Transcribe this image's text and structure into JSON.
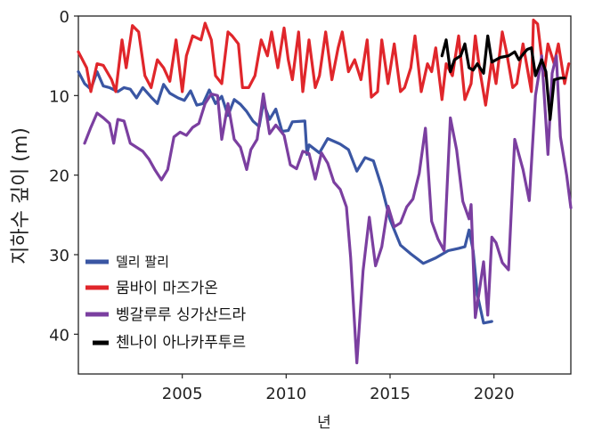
{
  "chart_data": {
    "type": "line",
    "title": "",
    "xlabel": "년",
    "ylabel": "지하수 깊이 (m)",
    "xlim": [
      2000,
      2023.7
    ],
    "ylim": [
      0,
      45
    ],
    "y_inverted": true,
    "x_ticks": [
      2005,
      2010,
      2015,
      2020
    ],
    "y_ticks": [
      0,
      10,
      20,
      30,
      40
    ],
    "legend_position": "bottom-left",
    "series": [
      {
        "name": "델리 팔리",
        "color": "#3a56a3",
        "points": [
          [
            2000.0,
            7.0
          ],
          [
            2000.3,
            8.5
          ],
          [
            2000.6,
            9.2
          ],
          [
            2000.9,
            7.0
          ],
          [
            2001.2,
            8.8
          ],
          [
            2001.5,
            9.0
          ],
          [
            2001.9,
            9.5
          ],
          [
            2002.2,
            9.0
          ],
          [
            2002.5,
            9.2
          ],
          [
            2002.8,
            10.3
          ],
          [
            2003.1,
            9.0
          ],
          [
            2003.5,
            10.2
          ],
          [
            2003.8,
            11.0
          ],
          [
            2004.1,
            8.6
          ],
          [
            2004.4,
            9.7
          ],
          [
            2004.8,
            10.3
          ],
          [
            2005.1,
            10.6
          ],
          [
            2005.4,
            9.4
          ],
          [
            2005.7,
            11.2
          ],
          [
            2006.0,
            11.0
          ],
          [
            2006.3,
            9.3
          ],
          [
            2006.6,
            11.0
          ],
          [
            2006.9,
            10.1
          ],
          [
            2007.2,
            12.5
          ],
          [
            2007.5,
            10.5
          ],
          [
            2007.8,
            11.1
          ],
          [
            2008.1,
            12.0
          ],
          [
            2008.4,
            13.2
          ],
          [
            2008.7,
            13.9
          ],
          [
            2008.9,
            10.9
          ],
          [
            2009.2,
            13.0
          ],
          [
            2009.5,
            11.7
          ],
          [
            2009.8,
            14.5
          ],
          [
            2010.1,
            14.4
          ],
          [
            2010.3,
            13.3
          ],
          [
            2010.9,
            13.2
          ],
          [
            2011.0,
            17.4
          ],
          [
            2011.1,
            16.2
          ],
          [
            2011.6,
            17.2
          ],
          [
            2012.0,
            15.4
          ],
          [
            2012.6,
            16.1
          ],
          [
            2013.0,
            16.8
          ],
          [
            2013.4,
            19.5
          ],
          [
            2013.8,
            17.8
          ],
          [
            2014.2,
            18.2
          ],
          [
            2014.6,
            21.5
          ],
          [
            2015.0,
            25.6
          ],
          [
            2015.5,
            28.8
          ],
          [
            2016.0,
            29.9
          ],
          [
            2016.6,
            31.1
          ],
          [
            2017.2,
            30.4
          ],
          [
            2017.8,
            29.5
          ],
          [
            2018.3,
            29.2
          ],
          [
            2018.6,
            29.0
          ],
          [
            2018.8,
            26.9
          ],
          [
            2019.0,
            29.5
          ],
          [
            2019.2,
            35.0
          ],
          [
            2019.5,
            38.6
          ],
          [
            2019.9,
            38.4
          ]
        ]
      },
      {
        "name": "뭄바이 마즈가온",
        "color": "#e0262b",
        "points": [
          [
            2000.0,
            4.5
          ],
          [
            2000.4,
            6.5
          ],
          [
            2000.6,
            9.5
          ],
          [
            2000.9,
            6.0
          ],
          [
            2001.2,
            6.2
          ],
          [
            2001.6,
            8.0
          ],
          [
            2001.8,
            9.5
          ],
          [
            2002.1,
            3.0
          ],
          [
            2002.3,
            6.5
          ],
          [
            2002.6,
            1.2
          ],
          [
            2002.9,
            2.0
          ],
          [
            2003.2,
            7.5
          ],
          [
            2003.5,
            9.0
          ],
          [
            2003.8,
            5.5
          ],
          [
            2004.1,
            6.5
          ],
          [
            2004.4,
            8.2
          ],
          [
            2004.7,
            3.0
          ],
          [
            2005.0,
            9.5
          ],
          [
            2005.2,
            5.0
          ],
          [
            2005.5,
            2.5
          ],
          [
            2005.9,
            3.0
          ],
          [
            2006.1,
            0.9
          ],
          [
            2006.4,
            3.0
          ],
          [
            2006.6,
            7.5
          ],
          [
            2006.9,
            8.5
          ],
          [
            2007.2,
            2.0
          ],
          [
            2007.4,
            2.5
          ],
          [
            2007.7,
            3.5
          ],
          [
            2007.9,
            9.0
          ],
          [
            2008.2,
            9.0
          ],
          [
            2008.5,
            7.5
          ],
          [
            2008.8,
            3.0
          ],
          [
            2009.1,
            5.0
          ],
          [
            2009.3,
            2.0
          ],
          [
            2009.6,
            6.5
          ],
          [
            2009.9,
            1.5
          ],
          [
            2010.1,
            5.5
          ],
          [
            2010.3,
            8.0
          ],
          [
            2010.6,
            2.0
          ],
          [
            2010.8,
            9.5
          ],
          [
            2011.1,
            3.0
          ],
          [
            2011.4,
            9.0
          ],
          [
            2011.6,
            7.5
          ],
          [
            2011.9,
            2.0
          ],
          [
            2012.2,
            8.0
          ],
          [
            2012.5,
            4.0
          ],
          [
            2012.7,
            2.0
          ],
          [
            2013.0,
            7.0
          ],
          [
            2013.3,
            5.5
          ],
          [
            2013.6,
            8.0
          ],
          [
            2013.9,
            3.0
          ],
          [
            2014.1,
            10.2
          ],
          [
            2014.4,
            9.5
          ],
          [
            2014.6,
            3.0
          ],
          [
            2014.9,
            8.5
          ],
          [
            2015.2,
            3.5
          ],
          [
            2015.5,
            9.5
          ],
          [
            2015.7,
            9.0
          ],
          [
            2016.0,
            6.5
          ],
          [
            2016.2,
            2.5
          ],
          [
            2016.5,
            9.5
          ],
          [
            2016.8,
            6.0
          ],
          [
            2017.0,
            7.0
          ],
          [
            2017.2,
            4.0
          ],
          [
            2017.5,
            10.5
          ],
          [
            2017.7,
            6.0
          ],
          [
            2018.0,
            7.5
          ],
          [
            2018.3,
            2.5
          ],
          [
            2018.6,
            10.5
          ],
          [
            2018.9,
            8.5
          ],
          [
            2019.1,
            2.5
          ],
          [
            2019.3,
            6.5
          ],
          [
            2019.6,
            11.2
          ],
          [
            2019.9,
            5.5
          ],
          [
            2020.1,
            8.5
          ],
          [
            2020.4,
            2.0
          ],
          [
            2020.6,
            4.5
          ],
          [
            2020.9,
            9.0
          ],
          [
            2021.1,
            8.5
          ],
          [
            2021.4,
            3.5
          ],
          [
            2021.8,
            9.5
          ],
          [
            2021.9,
            0.5
          ],
          [
            2022.1,
            1.0
          ],
          [
            2022.4,
            7.5
          ],
          [
            2022.6,
            3.5
          ],
          [
            2022.9,
            6.0
          ],
          [
            2023.1,
            3.5
          ],
          [
            2023.4,
            8.5
          ],
          [
            2023.6,
            6.0
          ]
        ]
      },
      {
        "name": "벵갈루루 싱가산드라",
        "color": "#7b3fa0",
        "points": [
          [
            2000.3,
            16.0
          ],
          [
            2000.6,
            14.0
          ],
          [
            2000.9,
            12.2
          ],
          [
            2001.2,
            12.8
          ],
          [
            2001.5,
            13.5
          ],
          [
            2001.7,
            16.0
          ],
          [
            2001.9,
            13.0
          ],
          [
            2002.2,
            13.2
          ],
          [
            2002.5,
            16.0
          ],
          [
            2002.8,
            16.5
          ],
          [
            2003.1,
            17.0
          ],
          [
            2003.4,
            18.0
          ],
          [
            2003.7,
            19.4
          ],
          [
            2004.0,
            20.6
          ],
          [
            2004.3,
            19.3
          ],
          [
            2004.6,
            15.2
          ],
          [
            2004.9,
            14.6
          ],
          [
            2005.2,
            15.0
          ],
          [
            2005.5,
            14.0
          ],
          [
            2005.8,
            13.5
          ],
          [
            2006.1,
            11.0
          ],
          [
            2006.4,
            9.8
          ],
          [
            2006.7,
            10.0
          ],
          [
            2006.9,
            15.5
          ],
          [
            2007.2,
            11.0
          ],
          [
            2007.5,
            15.5
          ],
          [
            2007.8,
            16.5
          ],
          [
            2008.1,
            19.3
          ],
          [
            2008.3,
            16.8
          ],
          [
            2008.6,
            15.5
          ],
          [
            2008.9,
            9.8
          ],
          [
            2009.2,
            14.8
          ],
          [
            2009.5,
            13.7
          ],
          [
            2009.9,
            15.0
          ],
          [
            2010.2,
            18.7
          ],
          [
            2010.5,
            19.2
          ],
          [
            2010.8,
            17.0
          ],
          [
            2011.1,
            17.3
          ],
          [
            2011.4,
            20.5
          ],
          [
            2011.7,
            17.2
          ],
          [
            2012.0,
            18.5
          ],
          [
            2012.3,
            20.9
          ],
          [
            2012.6,
            21.8
          ],
          [
            2012.9,
            24.0
          ],
          [
            2013.1,
            30.3
          ],
          [
            2013.4,
            43.6
          ],
          [
            2013.7,
            32.0
          ],
          [
            2014.0,
            25.3
          ],
          [
            2014.3,
            31.4
          ],
          [
            2014.6,
            29.0
          ],
          [
            2014.9,
            23.9
          ],
          [
            2015.2,
            26.5
          ],
          [
            2015.5,
            26.0
          ],
          [
            2015.8,
            24.0
          ],
          [
            2016.1,
            23.0
          ],
          [
            2016.4,
            19.8
          ],
          [
            2016.7,
            14.1
          ],
          [
            2017.0,
            25.8
          ],
          [
            2017.3,
            28.0
          ],
          [
            2017.6,
            29.5
          ],
          [
            2017.9,
            12.8
          ],
          [
            2018.2,
            16.8
          ],
          [
            2018.5,
            23.3
          ],
          [
            2018.8,
            25.5
          ],
          [
            2018.9,
            23.7
          ],
          [
            2019.1,
            37.9
          ],
          [
            2019.3,
            34.5
          ],
          [
            2019.5,
            30.9
          ],
          [
            2019.7,
            37.6
          ],
          [
            2019.9,
            27.8
          ],
          [
            2020.1,
            28.5
          ],
          [
            2020.4,
            31.0
          ],
          [
            2020.7,
            31.9
          ],
          [
            2021.0,
            15.5
          ],
          [
            2021.4,
            19.3
          ],
          [
            2021.7,
            23.2
          ],
          [
            2022.0,
            10.0
          ],
          [
            2022.3,
            5.0
          ],
          [
            2022.6,
            17.4
          ],
          [
            2022.8,
            7.2
          ],
          [
            2023.0,
            5.0
          ],
          [
            2023.2,
            15.2
          ],
          [
            2023.5,
            20.0
          ],
          [
            2023.7,
            24.1
          ]
        ]
      },
      {
        "name": "첸나이 아나카푸투르",
        "color": "#000000",
        "points": [
          [
            2017.5,
            5.0
          ],
          [
            2017.7,
            3.0
          ],
          [
            2017.9,
            7.0
          ],
          [
            2018.1,
            5.5
          ],
          [
            2018.4,
            5.0
          ],
          [
            2018.6,
            3.5
          ],
          [
            2018.8,
            6.5
          ],
          [
            2019.0,
            6.8
          ],
          [
            2019.2,
            6.0
          ],
          [
            2019.5,
            7.2
          ],
          [
            2019.7,
            2.5
          ],
          [
            2019.9,
            5.8
          ],
          [
            2020.3,
            5.2
          ],
          [
            2020.7,
            5.0
          ],
          [
            2021.0,
            4.5
          ],
          [
            2021.2,
            5.5
          ],
          [
            2021.4,
            4.8
          ],
          [
            2021.6,
            4.2
          ],
          [
            2021.8,
            4.0
          ],
          [
            2022.0,
            7.5
          ],
          [
            2022.3,
            5.5
          ],
          [
            2022.5,
            7.0
          ],
          [
            2022.7,
            13.0
          ],
          [
            2022.9,
            8.0
          ],
          [
            2023.2,
            7.8
          ],
          [
            2023.4,
            7.8
          ]
        ]
      }
    ]
  }
}
